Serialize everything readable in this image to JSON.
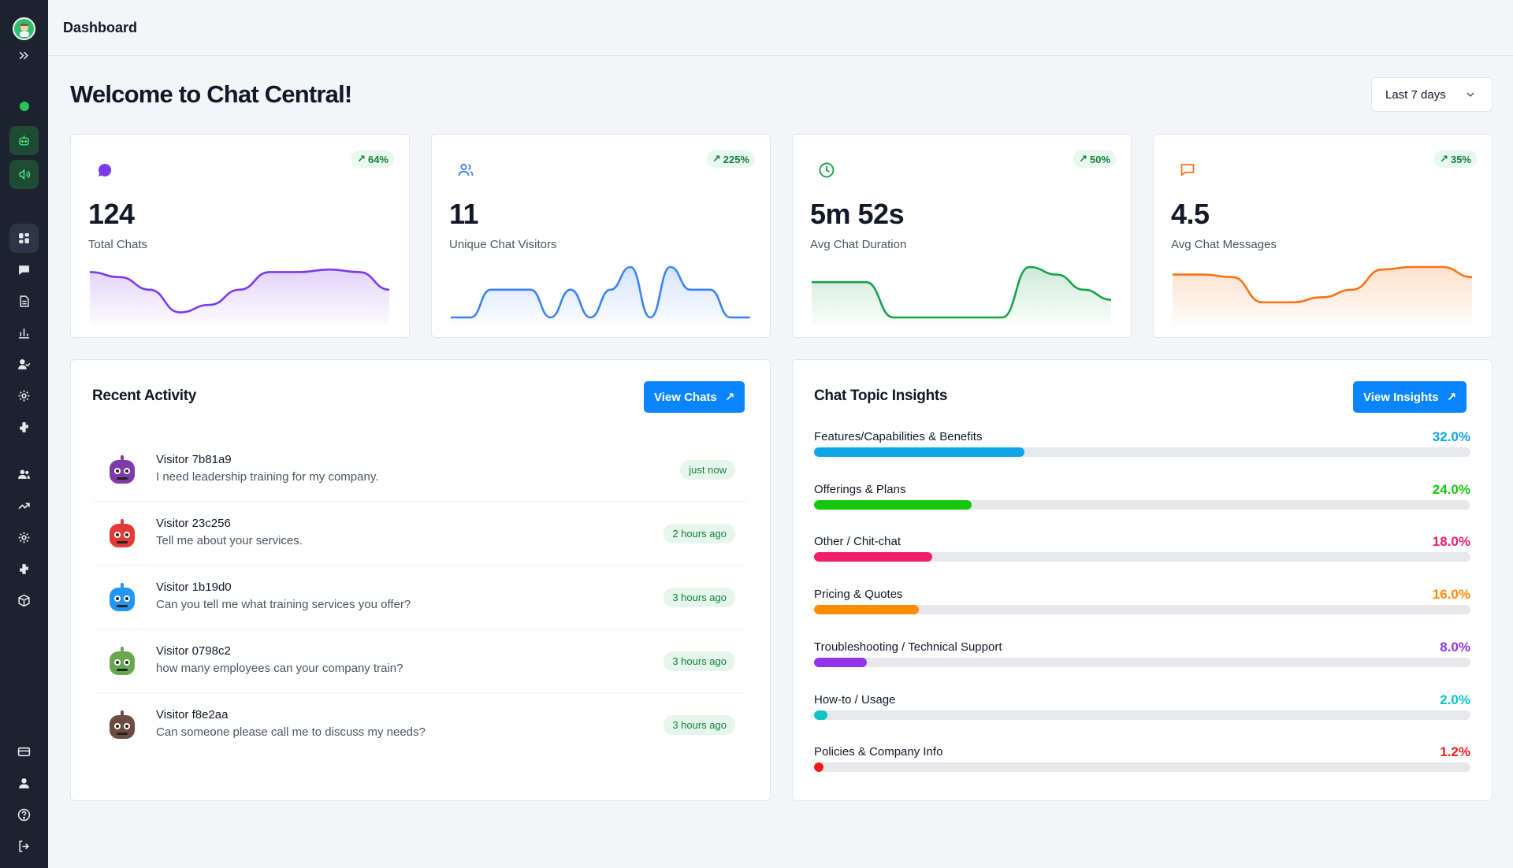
{
  "header": {
    "title": "Dashboard"
  },
  "welcome": "Welcome to Chat Central!",
  "date_range": {
    "selected": "Last 7 days"
  },
  "stats": [
    {
      "value": "124",
      "label": "Total Chats",
      "trend": "64%",
      "color": "#7c3aed",
      "icon": "chat-bubble-icon",
      "spark": [
        0.9,
        0.8,
        0.55,
        0.1,
        0.25,
        0.55,
        0.9,
        0.9,
        0.95,
        0.9,
        0.55
      ]
    },
    {
      "value": "11",
      "label": "Unique Chat Visitors",
      "trend": "225%",
      "color": "#3b82f6",
      "icon": "users-icon",
      "spark": [
        0.0,
        0.0,
        0.55,
        0.55,
        0.55,
        0.0,
        0.55,
        0.0,
        0.55,
        1.0,
        0.0,
        1.0,
        0.55,
        0.55,
        0.0,
        0.0
      ]
    },
    {
      "value": "5m 52s",
      "label": "Avg Chat Duration",
      "trend": "50%",
      "color": "#16a34a",
      "icon": "clock-icon",
      "spark": [
        0.7,
        0.7,
        0.7,
        0.0,
        0.0,
        0.0,
        0.0,
        0.0,
        1.0,
        0.85,
        0.55,
        0.35
      ]
    },
    {
      "value": "4.5",
      "label": "Avg Chat Messages",
      "trend": "35%",
      "color": "#f97316",
      "icon": "message-square-icon",
      "spark": [
        0.85,
        0.85,
        0.8,
        0.3,
        0.3,
        0.4,
        0.55,
        0.95,
        1.0,
        1.0,
        0.8
      ]
    }
  ],
  "activity": {
    "title": "Recent Activity",
    "button": "View Chats",
    "items": [
      {
        "name": "Visitor 7b81a9",
        "message": "I need leadership training for my company.",
        "time": "just now",
        "avatar_color": "#7e3ca8"
      },
      {
        "name": "Visitor 23c256",
        "message": "Tell me about your services.",
        "time": "2 hours ago",
        "avatar_color": "#e53935"
      },
      {
        "name": "Visitor 1b19d0",
        "message": "Can you tell me what training services you offer?",
        "time": "3 hours ago",
        "avatar_color": "#2196f3"
      },
      {
        "name": "Visitor 0798c2",
        "message": "how many employees can your company train?",
        "time": "3 hours ago",
        "avatar_color": "#6aa84f"
      },
      {
        "name": "Visitor f8e2aa",
        "message": "Can someone please call me to discuss my needs?",
        "time": "3 hours ago",
        "avatar_color": "#6d4c41"
      }
    ]
  },
  "insights": {
    "title": "Chat Topic Insights",
    "button": "View Insights",
    "topics": [
      {
        "name": "Features/Capabilities & Benefits",
        "pct_label": "32.0%",
        "pct": 32.0,
        "color": "#0ea5e9"
      },
      {
        "name": "Offerings & Plans",
        "pct_label": "24.0%",
        "pct": 24.0,
        "color": "#16c60c"
      },
      {
        "name": "Other / Chit-chat",
        "pct_label": "18.0%",
        "pct": 18.0,
        "color": "#f01d6a"
      },
      {
        "name": "Pricing & Quotes",
        "pct_label": "16.0%",
        "pct": 16.0,
        "color": "#ff8c00"
      },
      {
        "name": "Troubleshooting / Technical Support",
        "pct_label": "8.0%",
        "pct": 8.0,
        "color": "#9333ea"
      },
      {
        "name": "How-to / Usage",
        "pct_label": "2.0%",
        "pct": 2.0,
        "color": "#0cc4c4"
      },
      {
        "name": "Policies & Company Info",
        "pct_label": "1.2%",
        "pct": 1.2,
        "color": "#ef1c1c"
      }
    ]
  }
}
